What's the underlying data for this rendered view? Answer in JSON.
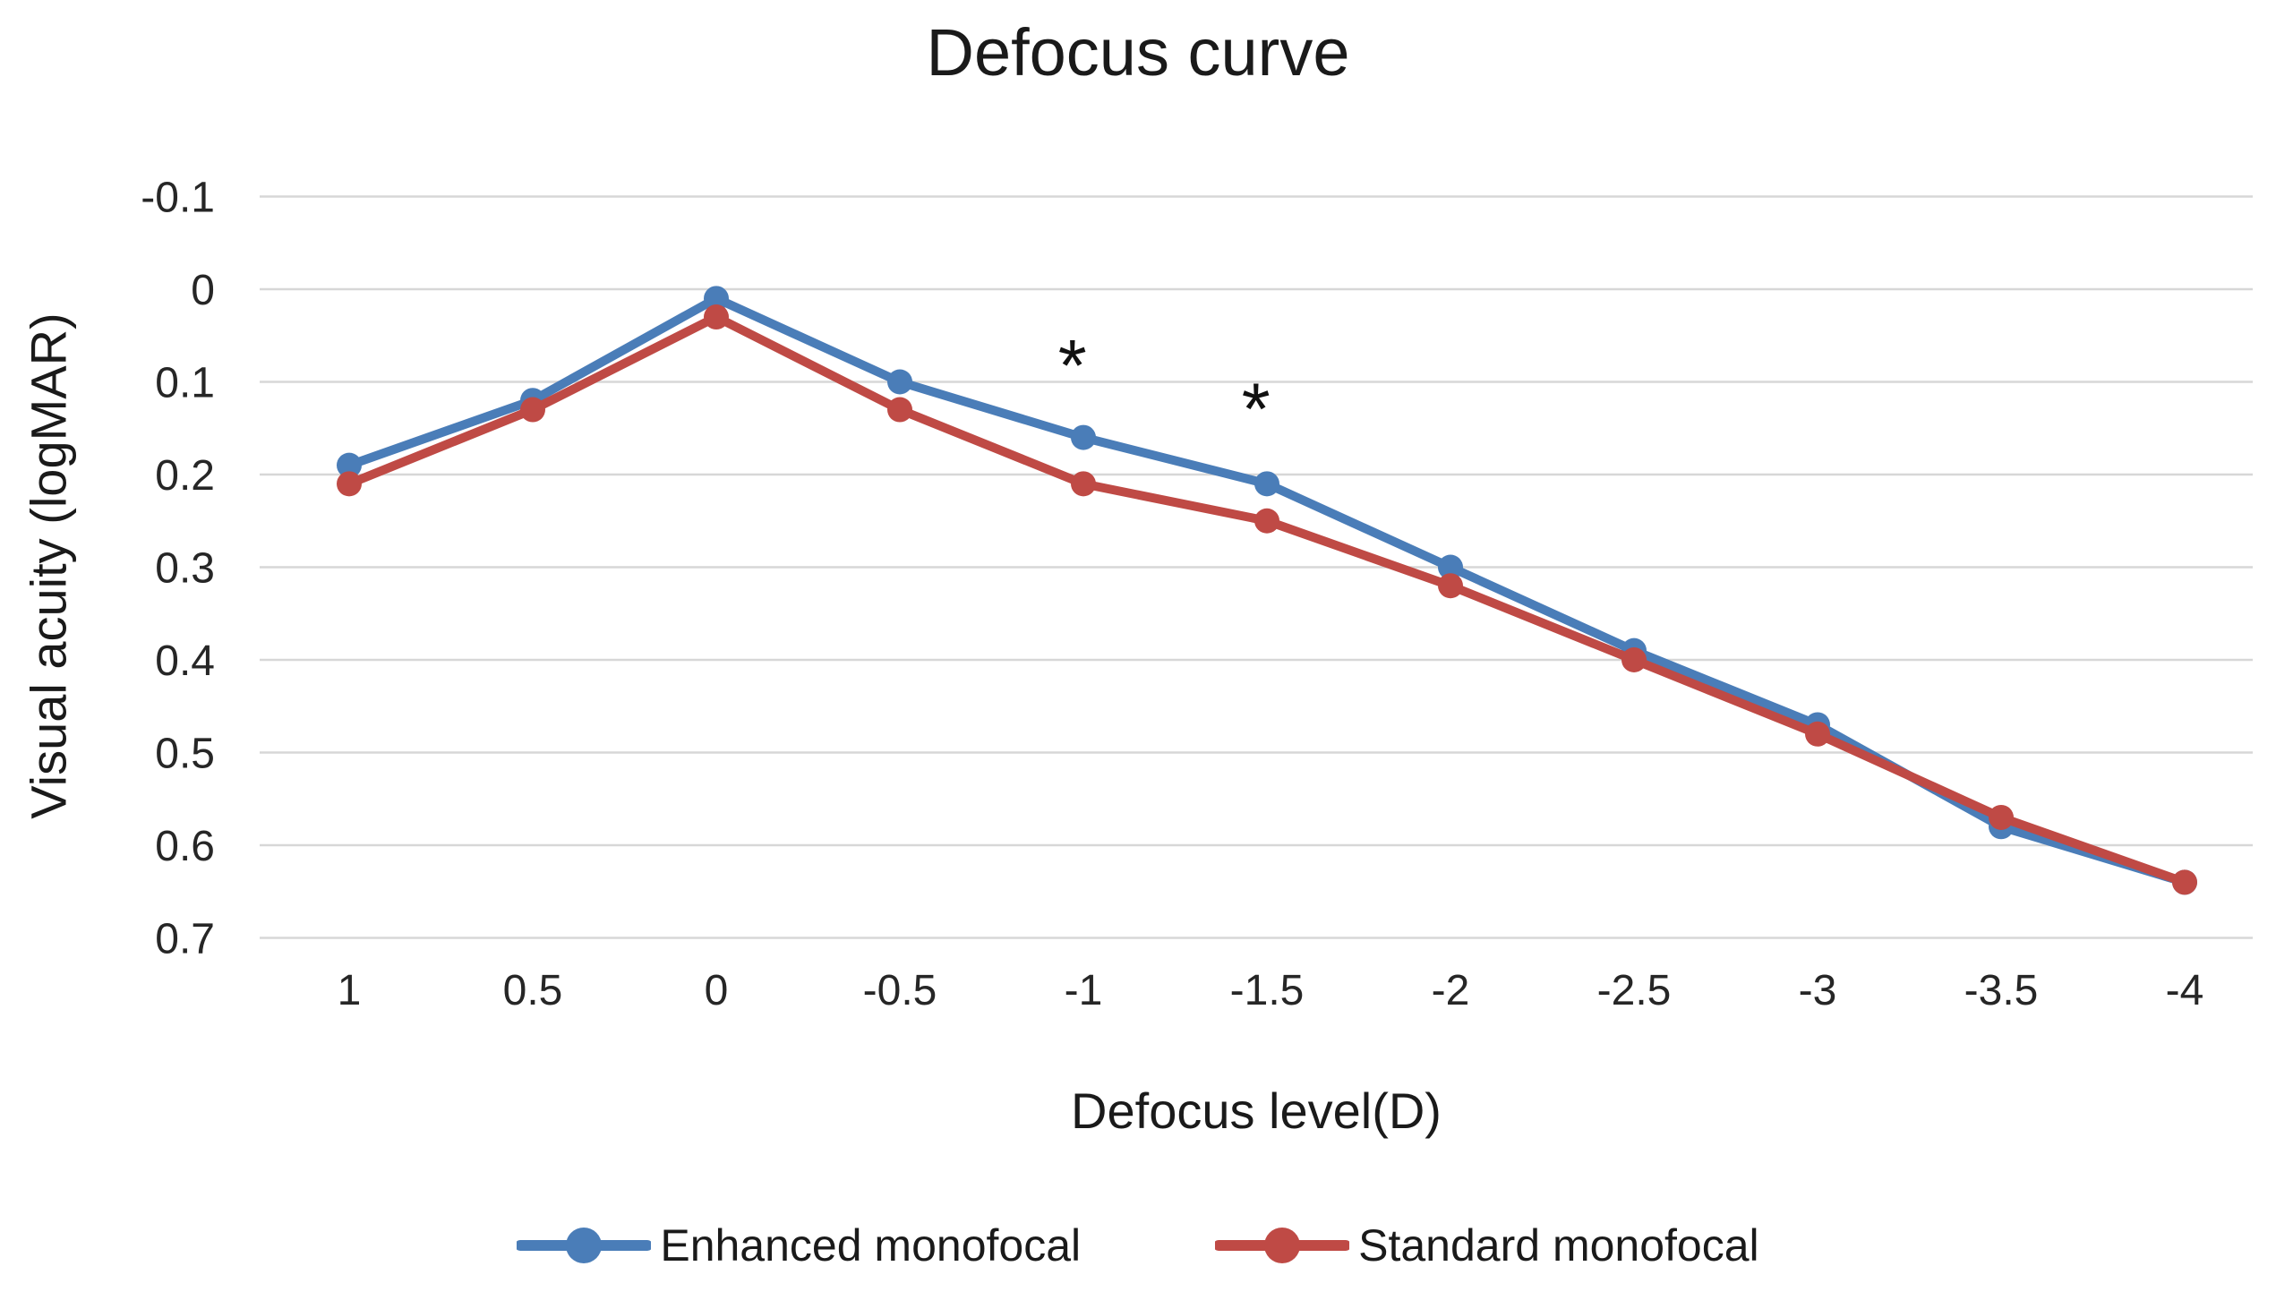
{
  "chart": {
    "title": "Defocus curve",
    "ylabel": "Visual acuity (logMAR)",
    "xlabel": "Defocus level(D)"
  },
  "chart_data": {
    "type": "line",
    "title": "Defocus curve",
    "xlabel": "Defocus level(D)",
    "ylabel": "Visual acuity (logMAR)",
    "categories": [
      1,
      0.5,
      0,
      -0.5,
      -1,
      -1.5,
      -2,
      -2.5,
      -3,
      -3.5,
      -4
    ],
    "y_ticks": [
      -0.1,
      0,
      0.1,
      0.2,
      0.3,
      0.4,
      0.5,
      0.6,
      0.7
    ],
    "ylim": [
      -0.1,
      0.7
    ],
    "y_axis_inverted": true,
    "grid": "horizontal-only",
    "legend_position": "bottom",
    "series": [
      {
        "name": "Enhanced monofocal",
        "color": "#4a7db8",
        "values": [
          0.19,
          0.12,
          0.01,
          0.1,
          0.16,
          0.21,
          0.3,
          0.39,
          0.47,
          0.58,
          0.64
        ]
      },
      {
        "name": "Standard monofocal",
        "color": "#bf4a45",
        "values": [
          0.21,
          0.13,
          0.03,
          0.13,
          0.21,
          0.25,
          0.32,
          0.4,
          0.48,
          0.57,
          0.64
        ]
      }
    ],
    "annotations": [
      {
        "text": "*",
        "x": -0.97,
        "y": 0.065
      },
      {
        "text": "*",
        "x": -1.47,
        "y": 0.112
      }
    ]
  },
  "colors": {
    "grid": "#d7d7d7",
    "tick_text": "#262626",
    "series_enhanced": "#4a7db8",
    "series_standard": "#bf4a45"
  }
}
